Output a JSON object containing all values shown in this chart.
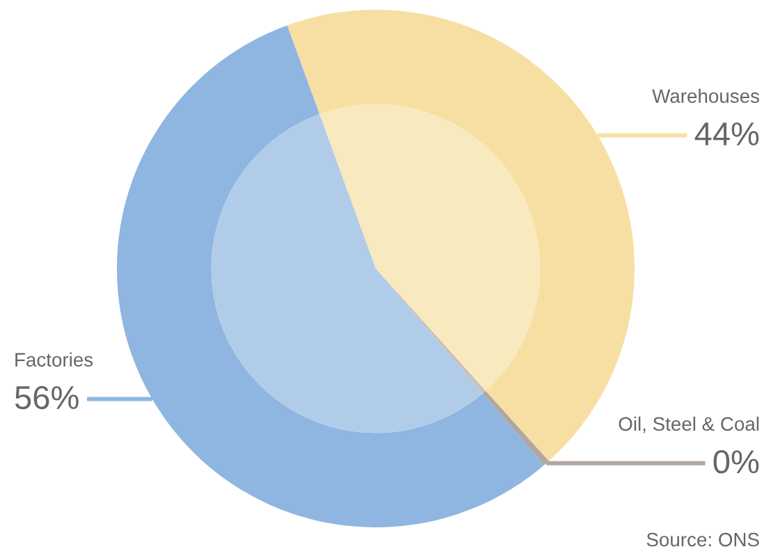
{
  "chart_data": {
    "type": "donut",
    "categories": [
      "Warehouses",
      "Oil, Steel & Coal",
      "Factories"
    ],
    "series": [
      {
        "values": [
          43.9,
          0.4,
          55.7
        ],
        "colors": [
          "#f7dfa3",
          "#b1a7a0",
          "#8fb6e0"
        ],
        "value_labels": [
          "44%",
          "0%",
          "56%"
        ]
      },
      {
        "type": "pie",
        "values": [
          43.9,
          0.4,
          55.7
        ],
        "colors": [
          "#f9e9bf",
          "#c8c1bc",
          "#b1cce9"
        ]
      }
    ],
    "annotations": [
      "Source: ONS"
    ]
  }
}
